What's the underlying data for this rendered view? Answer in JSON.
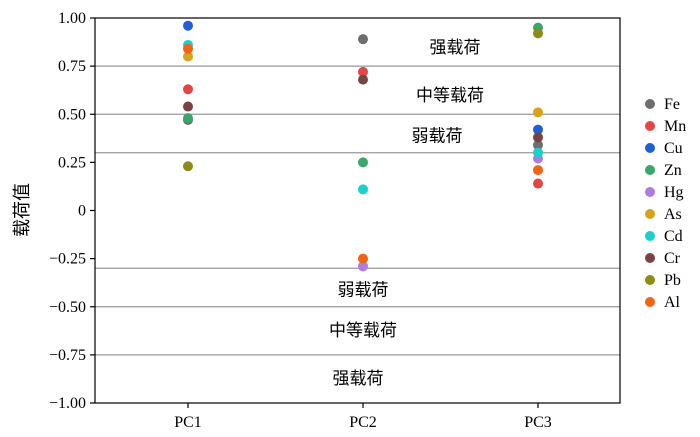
{
  "chart_data": {
    "type": "scatter",
    "categories": [
      "PC1",
      "PC2",
      "PC3"
    ],
    "ylabel": "载荷值",
    "ylim": [
      -1.0,
      1.0
    ],
    "y_ticks": [
      1.0,
      0.75,
      0.5,
      0.25,
      0,
      -0.25,
      -0.5,
      -0.75,
      -1.0
    ],
    "y_tick_labels": [
      "1.00",
      "0.75",
      "0.50",
      "0.25",
      "0",
      "−0.25",
      "−0.50",
      "−0.75",
      "−1.00"
    ],
    "threshold_lines": [
      0.75,
      0.5,
      0.3,
      -0.3,
      -0.5,
      -0.75
    ],
    "band_labels": [
      {
        "text": "强载荷",
        "y": 0.85
      },
      {
        "text": "中等载荷",
        "y": 0.6
      },
      {
        "text": "弱载荷",
        "y": 0.39
      },
      {
        "text": "弱载荷",
        "y": -0.41
      },
      {
        "text": "中等载荷",
        "y": -0.62
      },
      {
        "text": "强载荷",
        "y": -0.87
      }
    ],
    "legend_position": "right",
    "series": [
      {
        "name": "Fe",
        "color": "#6e6e6e",
        "values": [
          0.47,
          0.89,
          0.34
        ]
      },
      {
        "name": "Mn",
        "color": "#e64545",
        "values": [
          0.63,
          0.72,
          0.14
        ]
      },
      {
        "name": "Cu",
        "color": "#1f5fd6",
        "values": [
          0.96,
          null,
          0.42
        ]
      },
      {
        "name": "Zn",
        "color": "#3aa66a",
        "values": [
          0.48,
          0.25,
          0.95
        ]
      },
      {
        "name": "Hg",
        "color": "#b07ae0",
        "values": [
          null,
          -0.29,
          0.27
        ]
      },
      {
        "name": "As",
        "color": "#d9a21b",
        "values": [
          0.8,
          null,
          0.51
        ]
      },
      {
        "name": "Cd",
        "color": "#1ccfcf",
        "values": [
          0.86,
          0.11,
          0.3
        ]
      },
      {
        "name": "Cr",
        "color": "#7a4343",
        "values": [
          0.54,
          0.68,
          0.38
        ]
      },
      {
        "name": "Pb",
        "color": "#8c8c16",
        "values": [
          0.23,
          null,
          0.92
        ]
      },
      {
        "name": "Al",
        "color": "#f06414",
        "values": [
          0.84,
          -0.25,
          0.21
        ]
      }
    ]
  }
}
